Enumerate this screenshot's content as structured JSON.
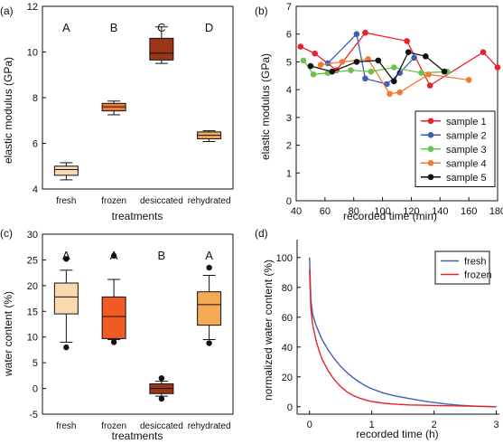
{
  "chart_data": [
    {
      "panel": "(a)",
      "type": "box",
      "xlabel": "treatments",
      "ylabel": "elastic modulus (GPa)",
      "ylim": [
        4,
        12
      ],
      "yticks": [
        4,
        6,
        8,
        10,
        12
      ],
      "categories": [
        "fresh",
        "frozen",
        "desiccated",
        "rehydrated"
      ],
      "group_letters": [
        "A",
        "B",
        "C",
        "D"
      ],
      "box_colors": [
        "#f8d9b0",
        "#f07b32",
        "#9b3517",
        "#f5aa55"
      ],
      "boxes": [
        {
          "whisker_low": 4.4,
          "q1": 4.6,
          "median": 4.85,
          "q3": 5.0,
          "whisker_high": 5.15,
          "outliers": []
        },
        {
          "whisker_low": 7.25,
          "q1": 7.42,
          "median": 7.6,
          "q3": 7.75,
          "whisker_high": 7.85,
          "outliers": []
        },
        {
          "whisker_low": 9.5,
          "q1": 9.65,
          "median": 9.95,
          "q3": 10.6,
          "whisker_high": 11.1,
          "outliers": []
        },
        {
          "whisker_low": 6.08,
          "q1": 6.2,
          "median": 6.35,
          "q3": 6.5,
          "whisker_high": 6.55,
          "outliers": []
        }
      ]
    },
    {
      "panel": "(b)",
      "type": "line",
      "xlabel": "recorded time (min)",
      "ylabel": "elastic modulus (GPa)",
      "xlim": [
        40,
        180
      ],
      "ylim": [
        0,
        7
      ],
      "xticks": [
        40,
        60,
        80,
        100,
        120,
        140,
        160,
        180
      ],
      "yticks": [
        0,
        1,
        2,
        3,
        4,
        5,
        6,
        7
      ],
      "legend_position": "lower-right",
      "series": [
        {
          "name": "sample 1",
          "color": "#e8222a",
          "x": [
            43,
            53,
            68,
            88,
            117,
            133,
            170,
            180
          ],
          "y": [
            5.55,
            5.3,
            4.7,
            6.05,
            5.75,
            4.15,
            5.35,
            4.8
          ]
        },
        {
          "name": "sample 2",
          "color": "#3f5fb5",
          "x": [
            62,
            82,
            88,
            103,
            112,
            122
          ],
          "y": [
            4.95,
            6.0,
            4.4,
            4.2,
            4.6,
            5.15
          ]
        },
        {
          "name": "sample 3",
          "color": "#66c44a",
          "x": [
            45,
            52,
            62,
            78,
            92,
            108,
            127,
            145
          ],
          "y": [
            5.05,
            4.55,
            4.6,
            4.7,
            4.65,
            4.8,
            4.6,
            4.65
          ]
        },
        {
          "name": "sample 4",
          "color": "#f07b32",
          "x": [
            57,
            72,
            90,
            105,
            112,
            132,
            160
          ],
          "y": [
            4.9,
            5.0,
            5.1,
            3.85,
            3.9,
            4.55,
            4.35
          ]
        },
        {
          "name": "sample 5",
          "color": "#111111",
          "x": [
            50,
            65,
            82,
            97,
            108,
            118,
            130,
            143
          ],
          "y": [
            4.85,
            4.65,
            5.0,
            5.05,
            4.3,
            5.35,
            5.2,
            4.65
          ]
        }
      ]
    },
    {
      "panel": "(c)",
      "type": "box",
      "xlabel": "treatments",
      "ylabel": "water content (%)",
      "ylim": [
        -5,
        30
      ],
      "yticks": [
        -5,
        0,
        5,
        10,
        15,
        20,
        25,
        30
      ],
      "categories": [
        "fresh",
        "frozen",
        "desiccated",
        "rehydrated"
      ],
      "group_letters": [
        "A",
        "A",
        "B",
        "A"
      ],
      "box_colors": [
        "#f8d9b0",
        "#f05a24",
        "#9b3517",
        "#f5aa55"
      ],
      "boxes": [
        {
          "whisker_low": 9,
          "q1": 14.5,
          "median": 17.8,
          "q3": 20.5,
          "whisker_high": 23,
          "outliers": [
            8,
            25.2
          ]
        },
        {
          "whisker_low": 9.5,
          "q1": 9.7,
          "median": 14,
          "q3": 17.8,
          "whisker_high": 21.2,
          "outliers": [
            9,
            25.8
          ]
        },
        {
          "whisker_low": -1.5,
          "q1": -1.0,
          "median": 0,
          "q3": 0.9,
          "whisker_high": 1.4,
          "outliers": [
            -2,
            2
          ]
        },
        {
          "whisker_low": 9.5,
          "q1": 12.3,
          "median": 16.3,
          "q3": 18.8,
          "whisker_high": 22,
          "outliers": [
            8.8,
            23.5
          ]
        }
      ]
    },
    {
      "panel": "(d)",
      "type": "line",
      "xlabel": "recorded time (h)",
      "ylabel": "normalized water content (%)",
      "xlim": [
        -0.2,
        3.05
      ],
      "ylim": [
        -5,
        112
      ],
      "xticks": [
        0,
        1,
        2,
        3
      ],
      "yticks": [
        0,
        20,
        40,
        60,
        80,
        100
      ],
      "legend_position": "top-right",
      "series": [
        {
          "name": "fresh",
          "color": "#3f5fb5",
          "x": [
            0,
            0.02,
            0.05,
            0.1,
            0.15,
            0.2,
            0.3,
            0.4,
            0.5,
            0.6,
            0.7,
            0.8,
            0.9,
            1.0,
            1.2,
            1.4,
            1.6,
            1.8,
            2.0,
            2.2,
            2.4,
            2.6,
            2.8,
            3.0
          ],
          "y": [
            100,
            72,
            62,
            55,
            50,
            45,
            38,
            32,
            27,
            23,
            19.5,
            16.5,
            14,
            12,
            9,
            7,
            5.5,
            4,
            2.8,
            1.8,
            1,
            0.5,
            0.2,
            0
          ]
        },
        {
          "name": "frozen",
          "color": "#e8222a",
          "x": [
            0,
            0.02,
            0.05,
            0.1,
            0.15,
            0.2,
            0.3,
            0.4,
            0.5,
            0.6,
            0.7,
            0.8,
            0.9,
            1.0,
            1.2,
            1.4,
            1.6,
            1.8,
            2.0,
            2.4,
            2.8,
            3.0
          ],
          "y": [
            92,
            66,
            55,
            45,
            38,
            32,
            24,
            18,
            13.5,
            10,
            7.5,
            5.8,
            4.5,
            3.5,
            2.3,
            1.6,
            1.2,
            1,
            0.8,
            0.5,
            0.2,
            0
          ]
        }
      ]
    }
  ]
}
